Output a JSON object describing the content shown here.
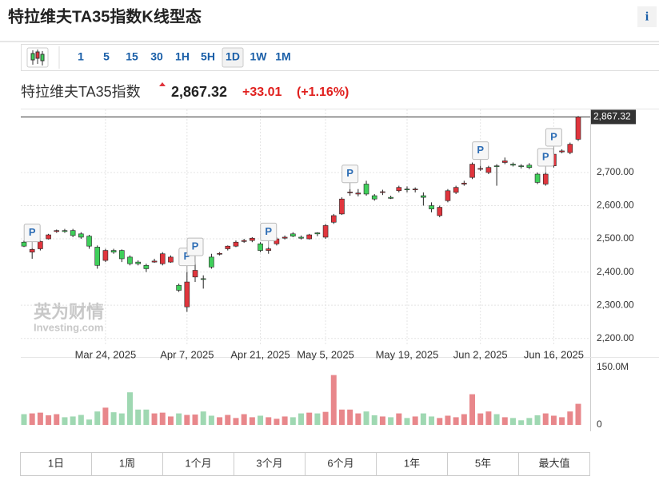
{
  "header": {
    "title": "特拉维夫TA35指数K线型态",
    "info": "i"
  },
  "toolbar": {
    "intervals": [
      "1",
      "5",
      "15",
      "30",
      "1H",
      "5H",
      "1D",
      "1W",
      "1M"
    ],
    "selected": "1D"
  },
  "quote": {
    "name": "特拉维夫TA35指数",
    "price": "2,867.32",
    "change": "+33.01",
    "change_pct": "(+1.16%)"
  },
  "watermark": {
    "brand": "英为财情",
    "site": "Investing.com"
  },
  "ranges": [
    "1日",
    "1周",
    "1个月",
    "3个月",
    "6个月",
    "1年",
    "5年",
    "最大值"
  ],
  "chart_data": {
    "type": "candlestick",
    "categories": [
      null,
      null,
      null,
      null,
      null,
      null,
      null,
      null,
      null,
      null,
      "Mar 24, 2025",
      null,
      null,
      null,
      null,
      null,
      null,
      null,
      null,
      null,
      "Apr 7, 2025",
      null,
      null,
      null,
      null,
      null,
      null,
      null,
      null,
      "Apr 21, 2025",
      null,
      null,
      null,
      null,
      null,
      null,
      null,
      "May 5, 2025",
      null,
      null,
      null,
      null,
      null,
      null,
      null,
      null,
      null,
      "May 19, 2025",
      null,
      null,
      null,
      null,
      null,
      null,
      null,
      null,
      "Jun 2, 2025",
      null,
      null,
      null,
      null,
      null,
      null,
      null,
      null,
      "Jun 16, 2025",
      null,
      null,
      null
    ],
    "ohlc": [
      [
        2490,
        2495,
        2475,
        2478
      ],
      [
        2460,
        2472,
        2440,
        2468
      ],
      [
        2470,
        2495,
        2465,
        2492
      ],
      [
        2500,
        2515,
        2498,
        2512
      ],
      [
        2522,
        2528,
        2518,
        2525
      ],
      [
        2525,
        2530,
        2518,
        2522
      ],
      [
        2525,
        2530,
        2505,
        2510
      ],
      [
        2515,
        2520,
        2500,
        2505
      ],
      [
        2508,
        2512,
        2470,
        2478
      ],
      [
        2475,
        2480,
        2410,
        2420
      ],
      [
        2435,
        2470,
        2430,
        2465
      ],
      [
        2465,
        2470,
        2455,
        2460
      ],
      [
        2465,
        2468,
        2430,
        2440
      ],
      [
        2445,
        2450,
        2420,
        2425
      ],
      [
        2430,
        2435,
        2420,
        2425
      ],
      [
        2420,
        2425,
        2400,
        2410
      ],
      [
        2430,
        2440,
        2428,
        2433
      ],
      [
        2425,
        2460,
        2420,
        2455
      ],
      [
        2430,
        2450,
        2428,
        2445
      ],
      [
        2360,
        2365,
        2340,
        2345
      ],
      [
        2295,
        2400,
        2280,
        2370
      ],
      [
        2385,
        2430,
        2370,
        2405
      ],
      [
        2380,
        2390,
        2350,
        2378
      ],
      [
        2445,
        2455,
        2410,
        2415
      ],
      [
        2455,
        2460,
        2450,
        2456
      ],
      [
        2470,
        2480,
        2465,
        2478
      ],
      [
        2478,
        2495,
        2475,
        2490
      ],
      [
        2492,
        2500,
        2488,
        2495
      ],
      [
        2495,
        2505,
        2490,
        2502
      ],
      [
        2485,
        2490,
        2460,
        2465
      ],
      [
        2465,
        2475,
        2455,
        2470
      ],
      [
        2485,
        2505,
        2480,
        2500
      ],
      [
        2502,
        2510,
        2498,
        2505
      ],
      [
        2515,
        2520,
        2505,
        2508
      ],
      [
        2505,
        2510,
        2498,
        2502
      ],
      [
        2500,
        2515,
        2498,
        2512
      ],
      [
        2518,
        2520,
        2508,
        2515
      ],
      [
        2505,
        2545,
        2500,
        2540
      ],
      [
        2550,
        2575,
        2545,
        2570
      ],
      [
        2575,
        2625,
        2572,
        2620
      ],
      [
        2640,
        2650,
        2630,
        2641
      ],
      [
        2635,
        2650,
        2628,
        2638
      ],
      [
        2665,
        2675,
        2630,
        2635
      ],
      [
        2630,
        2635,
        2615,
        2620
      ],
      [
        2640,
        2648,
        2632,
        2642
      ],
      [
        2625,
        2630,
        2620,
        2622
      ],
      [
        2645,
        2660,
        2640,
        2655
      ],
      [
        2650,
        2658,
        2640,
        2648
      ],
      [
        2648,
        2655,
        2640,
        2650
      ],
      [
        2630,
        2640,
        2600,
        2625
      ],
      [
        2600,
        2610,
        2580,
        2590
      ],
      [
        2570,
        2600,
        2565,
        2595
      ],
      [
        2615,
        2650,
        2610,
        2645
      ],
      [
        2640,
        2660,
        2635,
        2655
      ],
      [
        2665,
        2675,
        2660,
        2668
      ],
      [
        2685,
        2730,
        2680,
        2725
      ],
      [
        2710,
        2720,
        2705,
        2712
      ],
      [
        2700,
        2720,
        2695,
        2715
      ],
      [
        2720,
        2725,
        2660,
        2718
      ],
      [
        2730,
        2745,
        2725,
        2735
      ],
      [
        2725,
        2730,
        2718,
        2722
      ],
      [
        2720,
        2725,
        2712,
        2718
      ],
      [
        2722,
        2728,
        2710,
        2715
      ],
      [
        2695,
        2700,
        2665,
        2670
      ],
      [
        2665,
        2700,
        2660,
        2695
      ],
      [
        2720,
        2760,
        2715,
        2755
      ],
      [
        2762,
        2770,
        2758,
        2765
      ],
      [
        2760,
        2790,
        2755,
        2785
      ],
      [
        2800,
        2870,
        2795,
        2867.32
      ]
    ],
    "volume": [
      28000000,
      30000000,
      32000000,
      25000000,
      28000000,
      20000000,
      22000000,
      26000000,
      14000000,
      35000000,
      45000000,
      33000000,
      30000000,
      85000000,
      40000000,
      40000000,
      30000000,
      32000000,
      22000000,
      30000000,
      26000000,
      27000000,
      35000000,
      24000000,
      20000000,
      26000000,
      18000000,
      28000000,
      20000000,
      24000000,
      20000000,
      16000000,
      22000000,
      20000000,
      30000000,
      32000000,
      30000000,
      34000000,
      130000000,
      40000000,
      40000000,
      30000000,
      35000000,
      25000000,
      22000000,
      20000000,
      30000000,
      18000000,
      22000000,
      30000000,
      22000000,
      18000000,
      24000000,
      20000000,
      28000000,
      80000000,
      30000000,
      35000000,
      28000000,
      20000000,
      18000000,
      12000000,
      18000000,
      25000000,
      30000000,
      24000000,
      20000000,
      35000000,
      55000000
    ],
    "up_color": "#e0353d",
    "down_color": "#3fcf5a",
    "volume_up_color": "#e8878b",
    "volume_down_color": "#9fd8b2",
    "ylim": [
      2180,
      2890
    ],
    "yticks": [
      {
        "value": 2200,
        "label": "2,200.00"
      },
      {
        "value": 2300,
        "label": "2,300.00"
      },
      {
        "value": 2400,
        "label": "2,400.00"
      },
      {
        "value": 2500,
        "label": "2,500.00"
      },
      {
        "value": 2600,
        "label": "2,600.00"
      },
      {
        "value": 2700,
        "label": "2,700.00"
      }
    ],
    "volume_lim": [
      0,
      150000000
    ],
    "volume_ticks": [
      0,
      {
        "value": 150000000,
        "label": "150.0M"
      }
    ],
    "last_price": 2867.32,
    "last_price_label": "2,867.32",
    "markers": [
      {
        "index": 1,
        "label": "P"
      },
      {
        "index": 20,
        "label": "P"
      },
      {
        "index": 21,
        "label": "P"
      },
      {
        "index": 30,
        "label": "P"
      },
      {
        "index": 40,
        "label": "P"
      },
      {
        "index": 56,
        "label": "P"
      },
      {
        "index": 64,
        "label": "P"
      },
      {
        "index": 65,
        "label": "P"
      }
    ],
    "grid": true
  }
}
